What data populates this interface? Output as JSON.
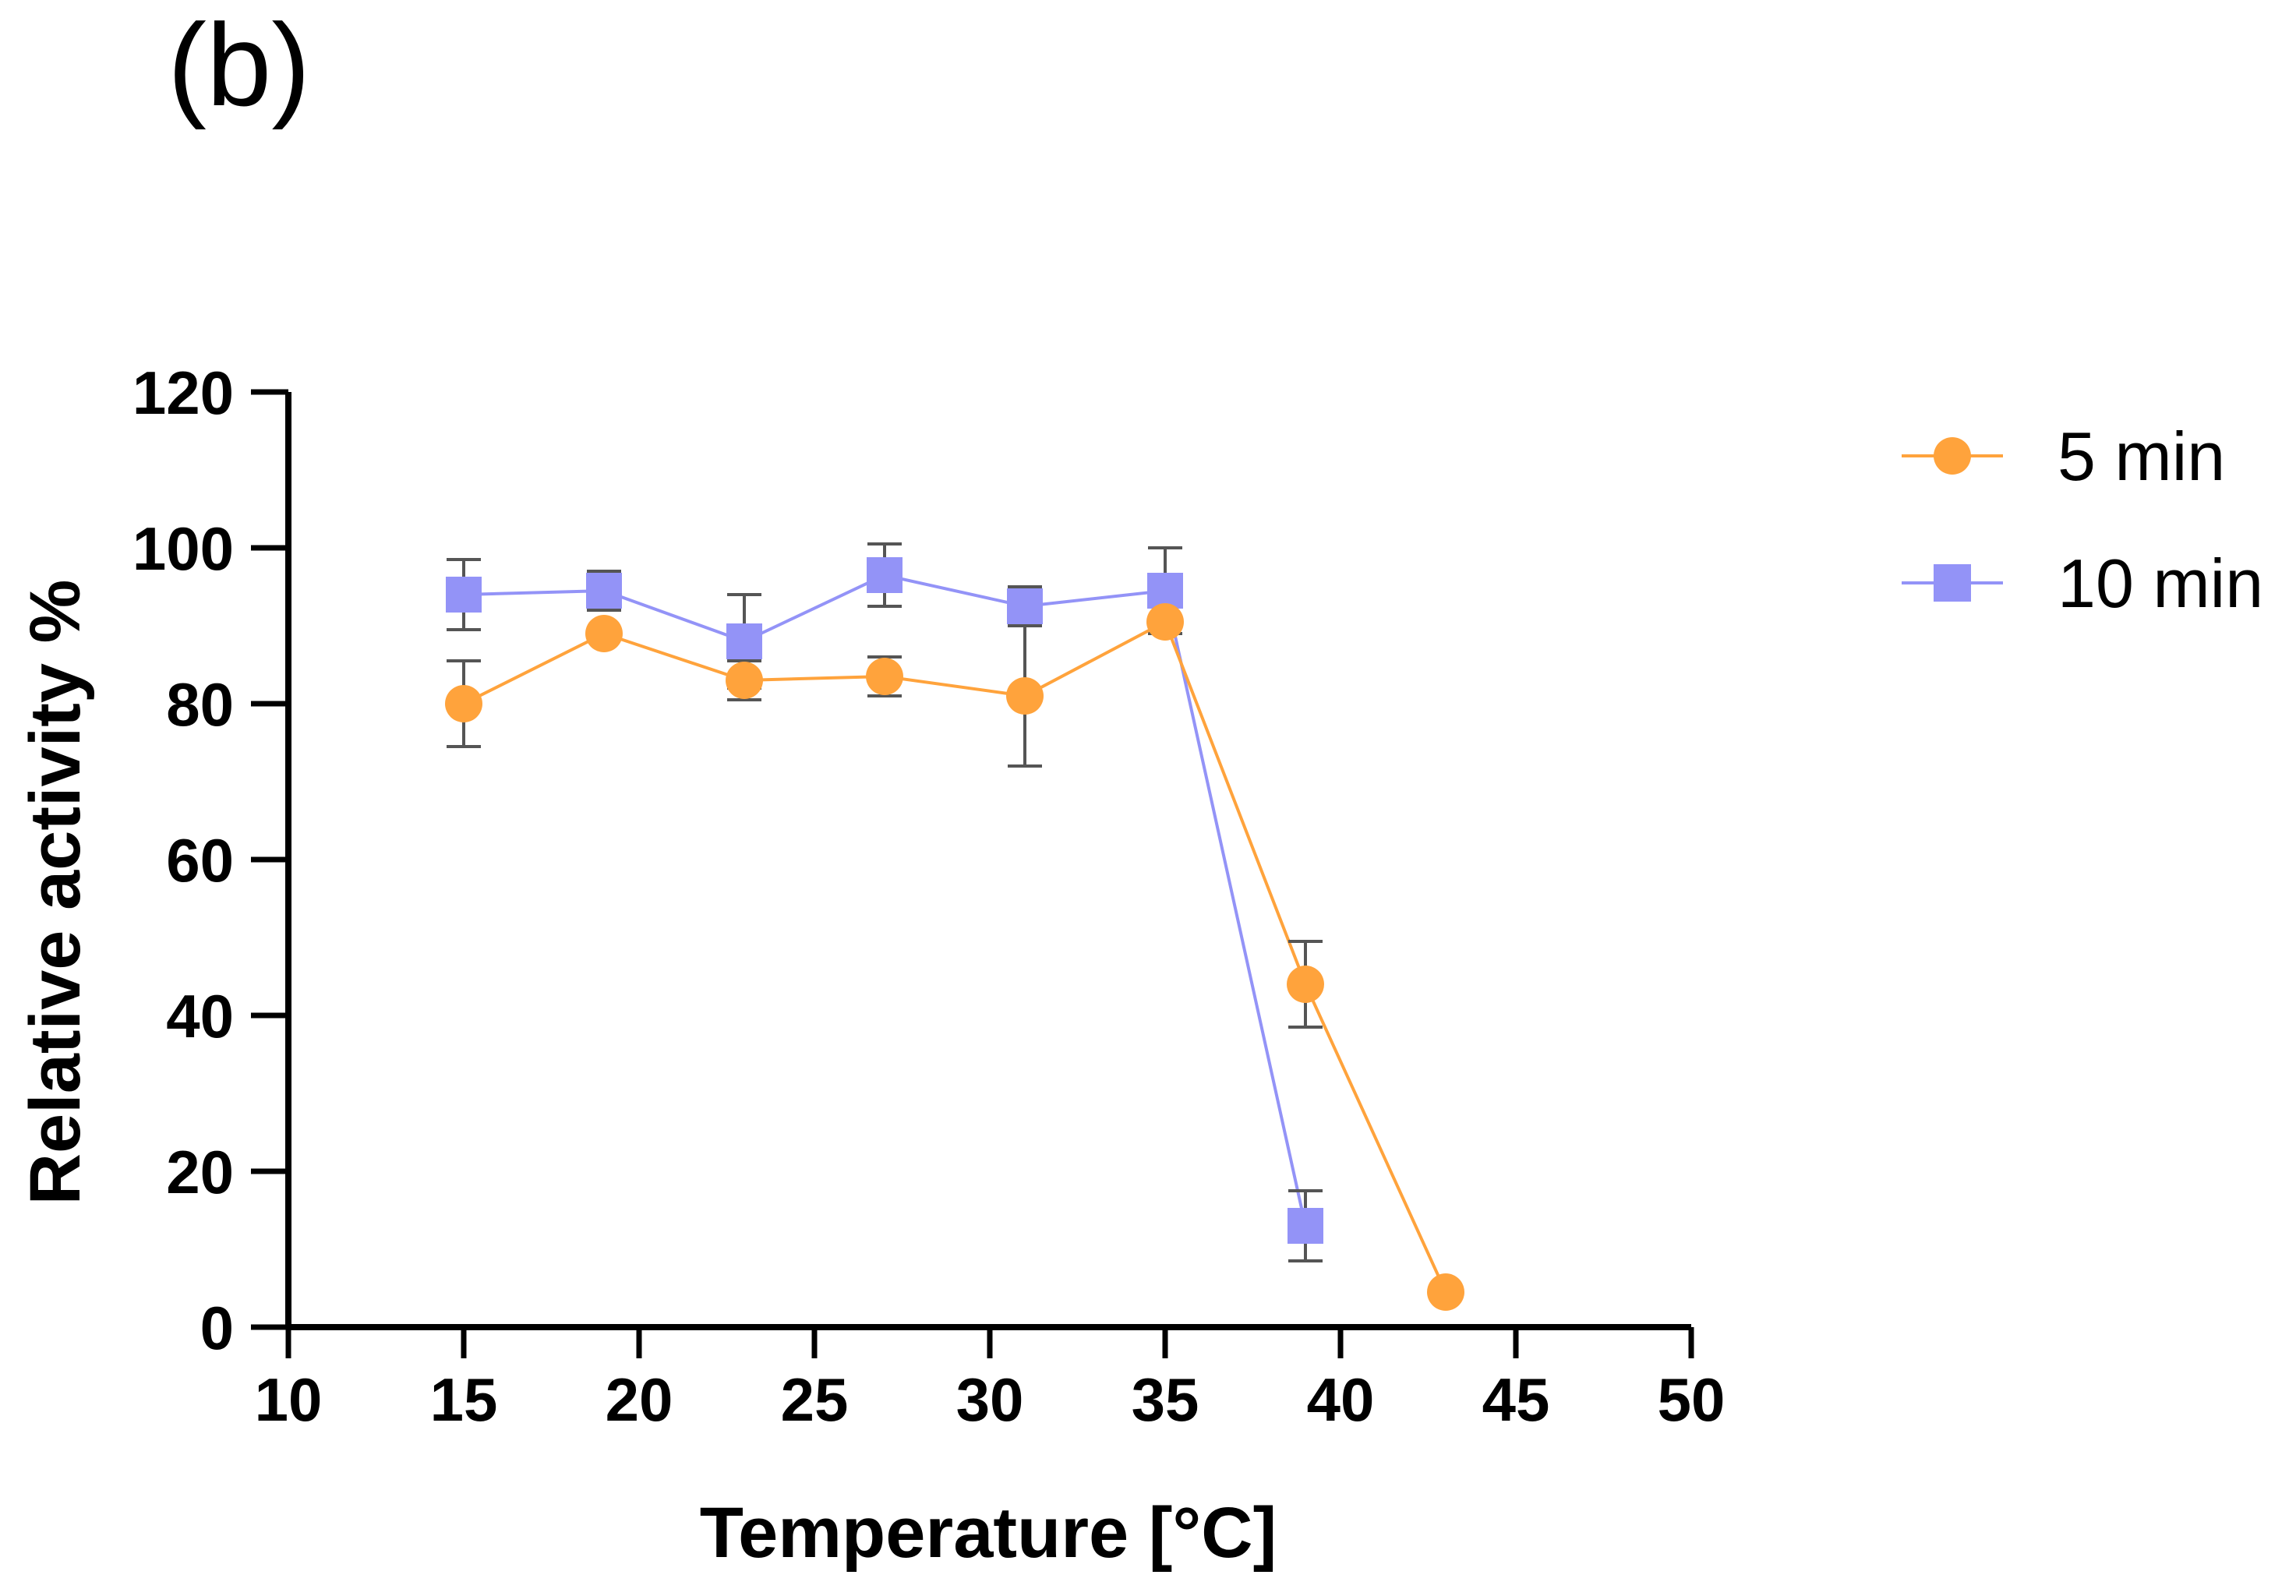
{
  "panel_label": "(b)",
  "chart_data": {
    "type": "line",
    "title": "",
    "xlabel": "Temperature [°C]",
    "ylabel": "Relative activity %",
    "xlim": [
      10,
      50
    ],
    "ylim": [
      0,
      120
    ],
    "xticks": [
      10,
      15,
      20,
      25,
      30,
      35,
      40,
      45,
      50
    ],
    "yticks": [
      0,
      20,
      40,
      60,
      80,
      100,
      120
    ],
    "x_tick_labels": [
      "10",
      "15",
      "20",
      "25",
      "30",
      "35",
      "40",
      "45",
      "50"
    ],
    "y_tick_labels": [
      "0",
      "20",
      "40",
      "60",
      "80",
      "100",
      "120"
    ],
    "grid": false,
    "legend_position": "top-right",
    "series": [
      {
        "name": "5 min",
        "marker": "circle",
        "color": "#FFA33C",
        "x": [
          15,
          19,
          23,
          27,
          31,
          35,
          39,
          43
        ],
        "y": [
          80,
          89,
          83,
          83.5,
          81,
          90.5,
          44,
          4.5
        ],
        "err": [
          5.5,
          0,
          2.5,
          2.5,
          9,
          0,
          5.5,
          0
        ]
      },
      {
        "name": "10 min",
        "marker": "square",
        "color": "#9393F7",
        "x": [
          15,
          19,
          23,
          27,
          31,
          35,
          39
        ],
        "y": [
          94,
          94.5,
          88,
          96.5,
          92.5,
          94.5,
          13
        ],
        "err": [
          4.5,
          2.5,
          6,
          4,
          2.5,
          5.5,
          4.5
        ]
      }
    ]
  }
}
